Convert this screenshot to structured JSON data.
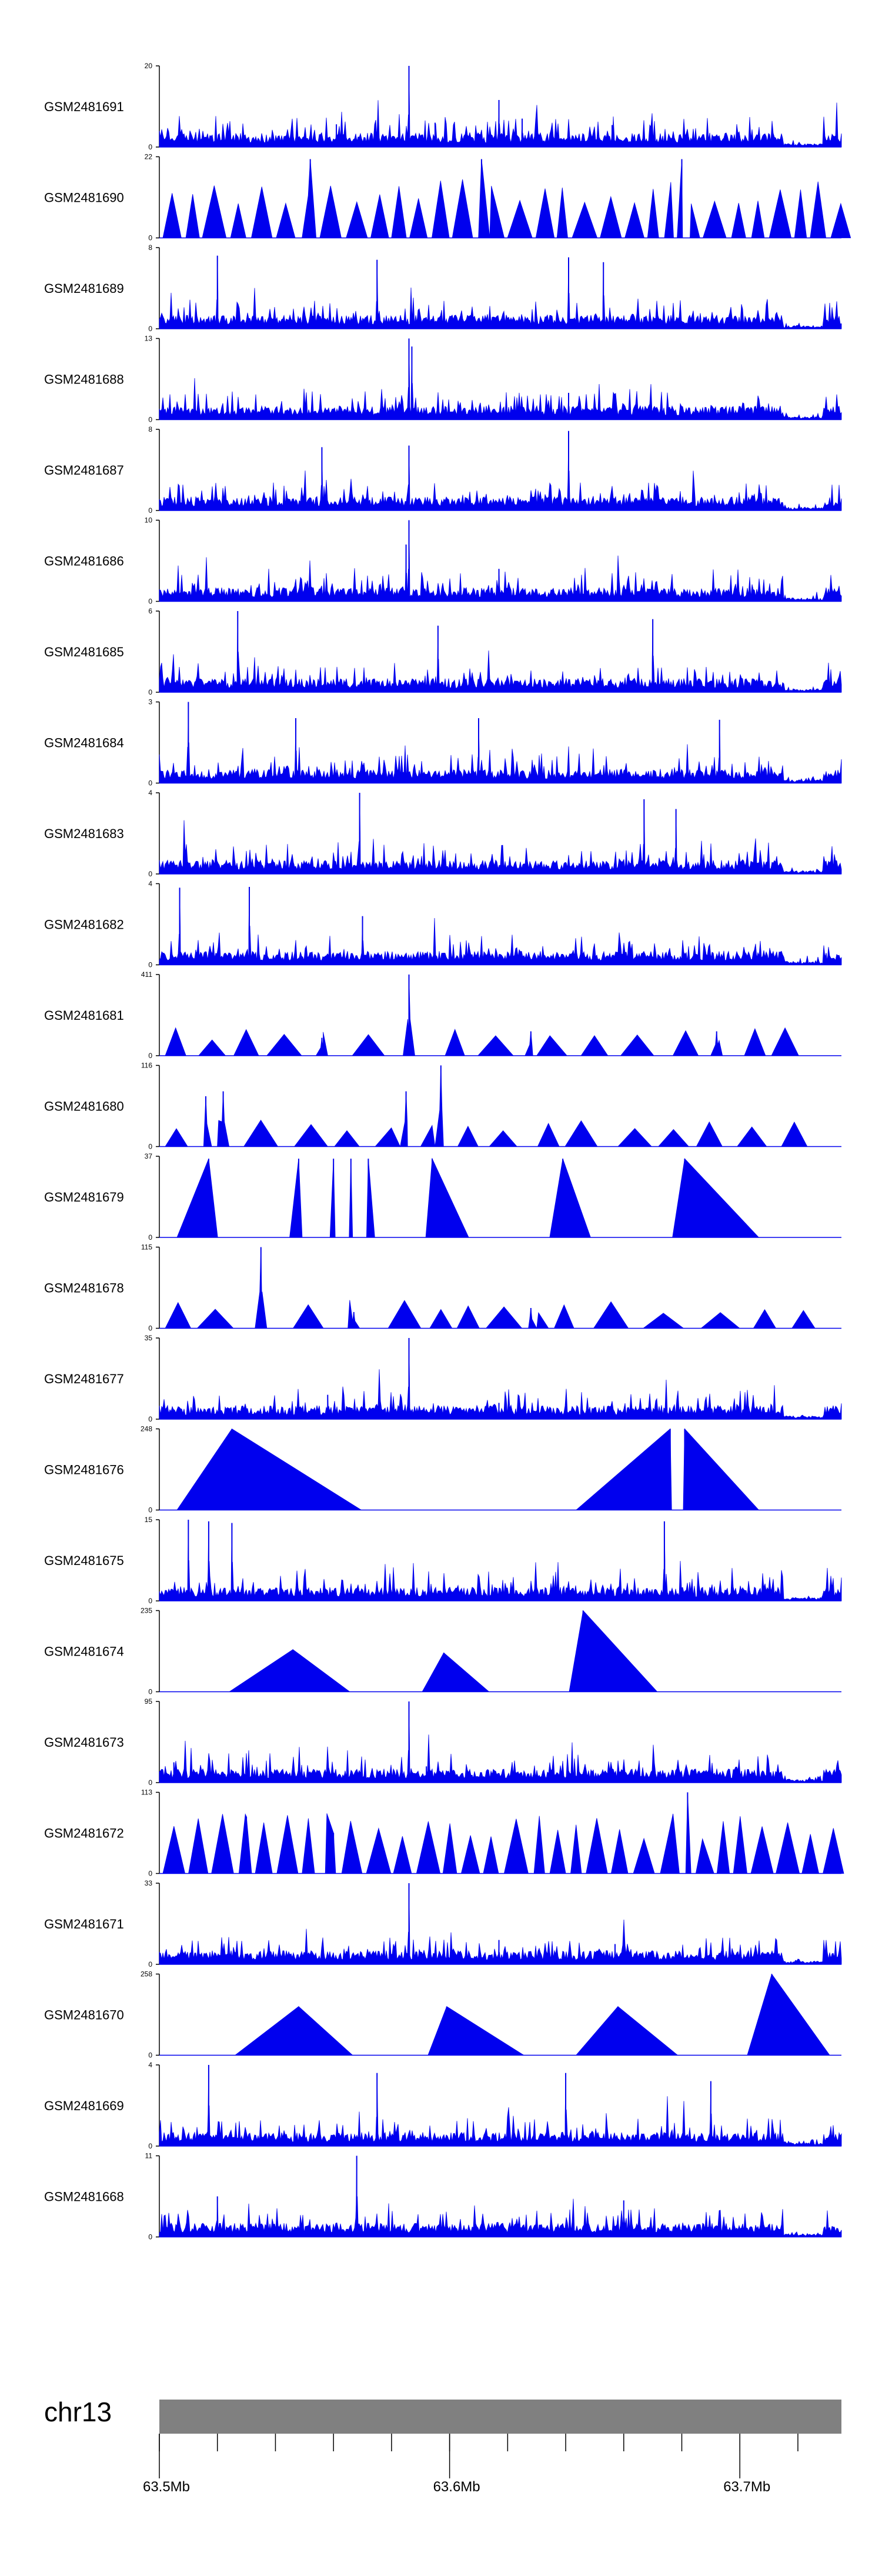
{
  "colors": {
    "signal": "#0000EE",
    "axis": "#000000",
    "ideogram": "#808080",
    "background": "#FFFFFF"
  },
  "chart_data": {
    "type": "area",
    "title": "",
    "xlabel": "",
    "ylabel": "",
    "x_unit": "Mb",
    "xlim": [
      63.5,
      63.735
    ],
    "tracks": [
      {
        "name": "GSM2481691",
        "ymax": 20,
        "ymin": 0,
        "style": "dense",
        "peaks": [
          [
            63.586,
            1.0
          ],
          [
            63.617,
            0.58
          ],
          [
            63.625,
            0.35
          ],
          [
            63.561,
            0.28
          ],
          [
            63.595,
            0.3
          ],
          [
            63.656,
            0.27
          ]
        ]
      },
      {
        "name": "GSM2481690",
        "ymax": 22,
        "ymin": 0,
        "style": "spiky",
        "peaks": [
          [
            63.552,
            0.97
          ],
          [
            63.611,
            0.97
          ],
          [
            63.68,
            0.97
          ]
        ]
      },
      {
        "name": "GSM2481689",
        "ymax": 8,
        "ymin": 0,
        "style": "dense",
        "peaks": [
          [
            63.52,
            0.9
          ],
          [
            63.575,
            0.85
          ],
          [
            63.641,
            0.88
          ],
          [
            63.653,
            0.82
          ]
        ]
      },
      {
        "name": "GSM2481688",
        "ymax": 13,
        "ymin": 0,
        "style": "dense",
        "peaks": [
          [
            63.586,
            1.0
          ],
          [
            63.587,
            0.9
          ],
          [
            63.641,
            0.33
          ]
        ]
      },
      {
        "name": "GSM2481687",
        "ymax": 8,
        "ymin": 0,
        "style": "dense",
        "peaks": [
          [
            63.641,
            0.98
          ],
          [
            63.586,
            0.8
          ],
          [
            63.556,
            0.78
          ]
        ]
      },
      {
        "name": "GSM2481686",
        "ymax": 10,
        "ymin": 0,
        "style": "dense",
        "peaks": [
          [
            63.586,
            1.0
          ],
          [
            63.585,
            0.7
          ],
          [
            63.617,
            0.4
          ]
        ]
      },
      {
        "name": "GSM2481685",
        "ymax": 6,
        "ymin": 0,
        "style": "dense",
        "peaks": [
          [
            63.527,
            1.0
          ],
          [
            63.596,
            0.82
          ],
          [
            63.67,
            0.9
          ]
        ]
      },
      {
        "name": "GSM2481684",
        "ymax": 3,
        "ymin": 0,
        "style": "dense",
        "peaks": [
          [
            63.51,
            1.0
          ],
          [
            63.547,
            0.8
          ],
          [
            63.61,
            0.8
          ],
          [
            63.693,
            0.78
          ]
        ]
      },
      {
        "name": "GSM2481683",
        "ymax": 4,
        "ymin": 0,
        "style": "dense",
        "peaks": [
          [
            63.569,
            1.0
          ],
          [
            63.667,
            0.92
          ],
          [
            63.678,
            0.8
          ]
        ]
      },
      {
        "name": "GSM2481682",
        "ymax": 4,
        "ymin": 0,
        "style": "dense",
        "peaks": [
          [
            63.507,
            0.95
          ],
          [
            63.531,
            0.96
          ],
          [
            63.57,
            0.6
          ]
        ]
      },
      {
        "name": "GSM2481681",
        "ymax": 411,
        "ymin": 0,
        "style": "sparse",
        "peaks": [
          [
            63.586,
            1.0
          ],
          [
            63.628,
            0.3
          ],
          [
            63.692,
            0.3
          ],
          [
            63.556,
            0.22
          ]
        ]
      },
      {
        "name": "GSM2481680",
        "ymax": 116,
        "ymin": 0,
        "style": "sparse",
        "peaks": [
          [
            63.597,
            1.0
          ],
          [
            63.522,
            0.68
          ],
          [
            63.516,
            0.62
          ],
          [
            63.585,
            0.68
          ]
        ]
      },
      {
        "name": "GSM2481679",
        "ymax": 37,
        "ymin": 0,
        "style": "wide",
        "peaks": [
          [
            63.517,
            0.97
          ],
          [
            63.548,
            0.97
          ],
          [
            63.56,
            0.97
          ],
          [
            63.566,
            0.97
          ],
          [
            63.572,
            0.97
          ],
          [
            63.594,
            0.97
          ],
          [
            63.639,
            0.97
          ],
          [
            63.681,
            0.97
          ]
        ]
      },
      {
        "name": "GSM2481678",
        "ymax": 115,
        "ymin": 0,
        "style": "sparse",
        "peaks": [
          [
            63.535,
            1.0
          ],
          [
            63.628,
            0.25
          ],
          [
            63.567,
            0.2
          ]
        ]
      },
      {
        "name": "GSM2481677",
        "ymax": 35,
        "ymin": 0,
        "style": "dense",
        "peaks": [
          [
            63.586,
            1.0
          ],
          [
            63.558,
            0.3
          ],
          [
            63.617,
            0.2
          ]
        ]
      },
      {
        "name": "GSM2481676",
        "ymax": 248,
        "ymin": 0,
        "style": "wide",
        "peaks": [
          [
            63.525,
            1.0
          ],
          [
            63.676,
            1.0
          ],
          [
            63.681,
            1.0
          ]
        ]
      },
      {
        "name": "GSM2481675",
        "ymax": 15,
        "ymin": 0,
        "style": "dense",
        "peaks": [
          [
            63.51,
            1.0
          ],
          [
            63.517,
            0.98
          ],
          [
            63.525,
            0.96
          ],
          [
            63.674,
            0.98
          ]
        ]
      },
      {
        "name": "GSM2481674",
        "ymax": 235,
        "ymin": 0,
        "style": "wide",
        "peaks": [
          [
            63.646,
            1.0
          ],
          [
            63.598,
            0.48
          ],
          [
            63.546,
            0.52
          ]
        ]
      },
      {
        "name": "GSM2481673",
        "ymax": 95,
        "ymin": 0,
        "style": "dense",
        "peaks": [
          [
            63.586,
            1.0
          ],
          [
            63.505,
            0.25
          ],
          [
            63.592,
            0.2
          ]
        ]
      },
      {
        "name": "GSM2481672",
        "ymax": 113,
        "ymin": 0,
        "style": "spiky",
        "peaks": [
          [
            63.682,
            1.0
          ],
          [
            63.53,
            0.7
          ],
          [
            63.56,
            0.5
          ]
        ]
      },
      {
        "name": "GSM2481671",
        "ymax": 33,
        "ymin": 0,
        "style": "dense",
        "peaks": [
          [
            63.586,
            1.0
          ],
          [
            63.617,
            0.3
          ],
          [
            63.657,
            0.25
          ]
        ]
      },
      {
        "name": "GSM2481670",
        "ymax": 258,
        "ymin": 0,
        "style": "wide",
        "peaks": [
          [
            63.711,
            1.0
          ],
          [
            63.548,
            0.6
          ],
          [
            63.599,
            0.6
          ],
          [
            63.658,
            0.6
          ]
        ]
      },
      {
        "name": "GSM2481669",
        "ymax": 4,
        "ymin": 0,
        "style": "dense",
        "peaks": [
          [
            63.517,
            1.0
          ],
          [
            63.575,
            0.9
          ],
          [
            63.64,
            0.9
          ],
          [
            63.69,
            0.8
          ]
        ]
      },
      {
        "name": "GSM2481668",
        "ymax": 11,
        "ymin": 0,
        "style": "dense",
        "peaks": [
          [
            63.568,
            1.0
          ],
          [
            63.52,
            0.5
          ],
          [
            63.66,
            0.45
          ]
        ]
      }
    ],
    "ideogram": {
      "chromosome": "chr13",
      "tick_labels": [
        {
          "pos": 63.5,
          "label": "63.5Mb"
        },
        {
          "pos": 63.6,
          "label": "63.6Mb"
        },
        {
          "pos": 63.7,
          "label": "63.7Mb"
        }
      ],
      "minor_tick_interval": 0.02
    }
  }
}
